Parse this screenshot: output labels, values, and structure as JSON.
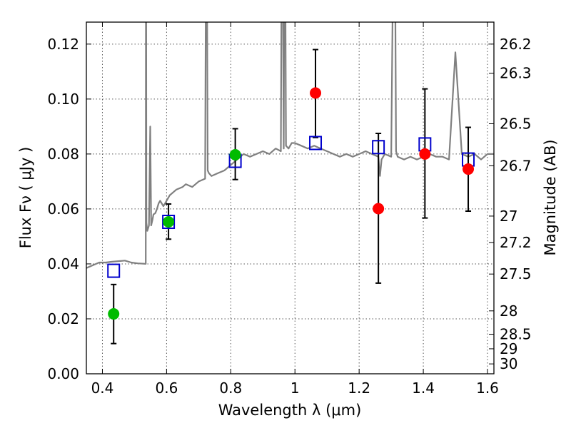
{
  "chart_data": {
    "type": "scatter",
    "xlabel": "Wavelength  λ (μm)",
    "ylabel": "Flux  Fν  ( μJy )",
    "y2label": "Magnitude (AB)",
    "xlim": [
      0.35,
      1.62
    ],
    "ylim": [
      0.0,
      0.128
    ],
    "grid": true,
    "x_ticks": [
      0.4,
      0.6,
      0.8,
      1.0,
      1.2,
      1.4,
      1.6
    ],
    "x_tick_labels": [
      "0.4",
      "0.6",
      "0.8",
      "1",
      "1.2",
      "1.4",
      "1.6"
    ],
    "y_ticks": [
      0.0,
      0.02,
      0.04,
      0.06,
      0.08,
      0.1,
      0.12
    ],
    "y_tick_labels": [
      "0.00",
      "0.02",
      "0.04",
      "0.06",
      "0.08",
      "0.10",
      "0.12"
    ],
    "y2_ticks": [
      {
        "label": "26.2",
        "flux": 0.12
      },
      {
        "label": "26.3",
        "flux": 0.1094
      },
      {
        "label": "26.5",
        "flux": 0.091
      },
      {
        "label": "26.7",
        "flux": 0.0757
      },
      {
        "label": "27",
        "flux": 0.0574
      },
      {
        "label": "27.2",
        "flux": 0.0478
      },
      {
        "label": "27.5",
        "flux": 0.0363
      },
      {
        "label": "28",
        "flux": 0.0229
      },
      {
        "label": "28.5",
        "flux": 0.0144
      },
      {
        "label": "29",
        "flux": 0.0091
      },
      {
        "label": "30",
        "flux": 0.0036
      }
    ],
    "model_spectrum": {
      "color": "#808080",
      "x": [
        0.35,
        0.37,
        0.39,
        0.41,
        0.43,
        0.45,
        0.47,
        0.49,
        0.51,
        0.535,
        0.536,
        0.537,
        0.54,
        0.545,
        0.549,
        0.552,
        0.556,
        0.559,
        0.565,
        0.57,
        0.575,
        0.58,
        0.59,
        0.6,
        0.61,
        0.62,
        0.63,
        0.64,
        0.65,
        0.66,
        0.68,
        0.7,
        0.72,
        0.724,
        0.728,
        0.732,
        0.74,
        0.76,
        0.78,
        0.8,
        0.82,
        0.84,
        0.86,
        0.88,
        0.9,
        0.92,
        0.94,
        0.956,
        0.96,
        0.965,
        0.968,
        0.972,
        0.98,
        0.985,
        0.99,
        1.0,
        1.02,
        1.04,
        1.06,
        1.08,
        1.1,
        1.12,
        1.14,
        1.16,
        1.18,
        1.2,
        1.22,
        1.24,
        1.26,
        1.265,
        1.27,
        1.28,
        1.3,
        1.31,
        1.315,
        1.32,
        1.34,
        1.36,
        1.38,
        1.4,
        1.42,
        1.44,
        1.46,
        1.48,
        1.5,
        1.52,
        1.54,
        1.56,
        1.58,
        1.6,
        1.62
      ],
      "y": [
        0.0385,
        0.0395,
        0.0405,
        0.0405,
        0.0408,
        0.041,
        0.0412,
        0.0405,
        0.0402,
        0.04,
        0.2,
        0.055,
        0.052,
        0.054,
        0.09,
        0.054,
        0.056,
        0.058,
        0.0585,
        0.06,
        0.062,
        0.063,
        0.061,
        0.063,
        0.065,
        0.066,
        0.067,
        0.0675,
        0.068,
        0.069,
        0.068,
        0.07,
        0.071,
        0.2,
        0.074,
        0.073,
        0.072,
        0.073,
        0.074,
        0.076,
        0.078,
        0.08,
        0.079,
        0.08,
        0.081,
        0.08,
        0.082,
        0.081,
        0.2,
        0.082,
        0.2,
        0.083,
        0.082,
        0.083,
        0.084,
        0.084,
        0.083,
        0.082,
        0.083,
        0.082,
        0.081,
        0.08,
        0.079,
        0.08,
        0.079,
        0.08,
        0.081,
        0.08,
        0.079,
        0.072,
        0.078,
        0.08,
        0.079,
        0.2,
        0.081,
        0.079,
        0.078,
        0.079,
        0.078,
        0.079,
        0.08,
        0.079,
        0.079,
        0.078,
        0.117,
        0.08,
        0.079,
        0.08,
        0.078,
        0.08,
        0.08
      ]
    },
    "model_photometry": {
      "marker": "open-square",
      "color": "#0000cc",
      "x": [
        0.435,
        0.606,
        0.814,
        1.064,
        1.26,
        1.405,
        1.54
      ],
      "y": [
        0.0375,
        0.0553,
        0.0775,
        0.084,
        0.0825,
        0.0835,
        0.078
      ]
    },
    "observed_green": {
      "marker": "filled-circle",
      "color": "#00bb00",
      "x": [
        0.435,
        0.606,
        0.814
      ],
      "y": [
        0.0218,
        0.0553,
        0.0797
      ],
      "yerr_low": [
        0.0108,
        0.0063,
        0.009
      ],
      "yerr_high": [
        0.0107,
        0.0065,
        0.0095
      ]
    },
    "observed_red": {
      "marker": "filled-circle",
      "color": "#ff0000",
      "x": [
        1.064,
        1.26,
        1.405,
        1.54
      ],
      "y": [
        0.1022,
        0.0601,
        0.08,
        0.0745
      ],
      "yerr_low": [
        0.0162,
        0.0271,
        0.0233,
        0.0153
      ],
      "yerr_high": [
        0.0158,
        0.0274,
        0.0237,
        0.0152
      ]
    },
    "errorbar_color": "#000000"
  }
}
